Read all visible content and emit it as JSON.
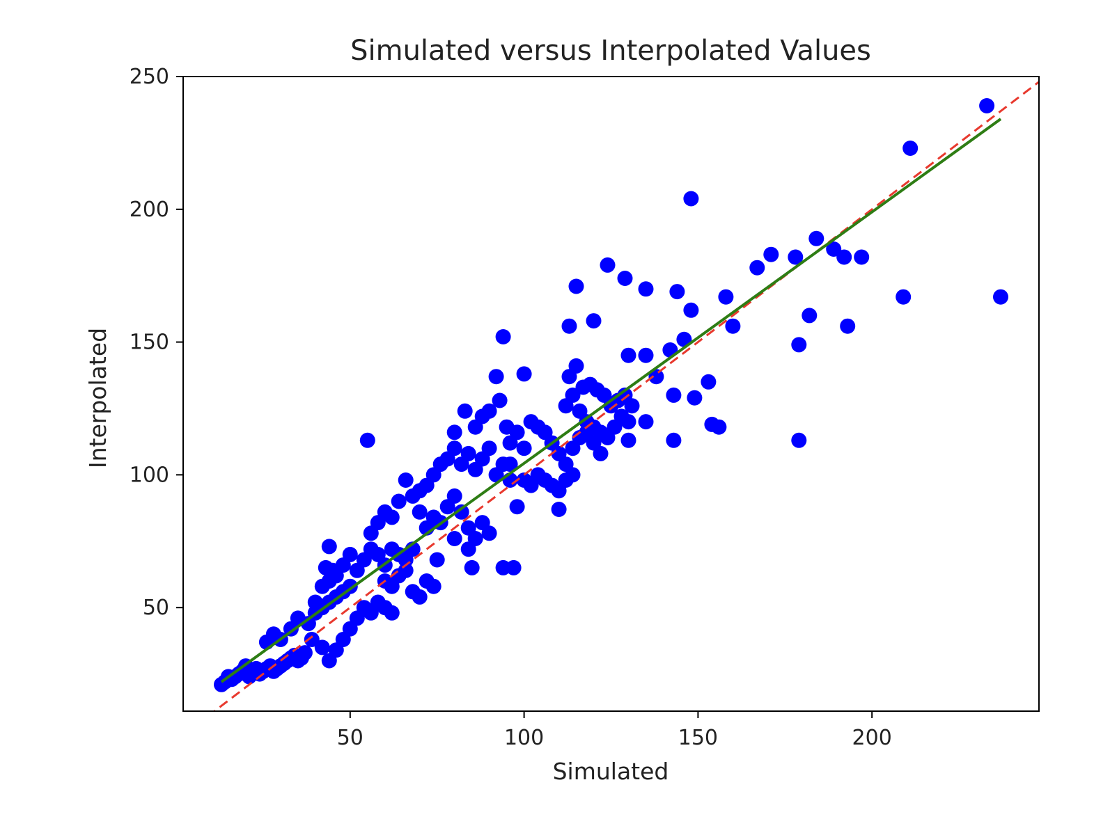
{
  "chart_data": {
    "type": "scatter",
    "title": "Simulated versus Interpolated Values",
    "xlabel": "Simulated",
    "ylabel": "Interpolated",
    "xlim": [
      2,
      248
    ],
    "ylim": [
      11,
      250
    ],
    "xticks": [
      50,
      100,
      150,
      200
    ],
    "yticks": [
      50,
      100,
      150,
      200,
      250
    ],
    "grid": false,
    "legend": "none",
    "colors": {
      "points": "#0000ff",
      "identity_line": "#e8392e",
      "fit_line": "#2e7d14",
      "axes": "#000000"
    },
    "identity_line": {
      "x": [
        2,
        248
      ],
      "y": [
        2,
        248
      ],
      "style": "dashed"
    },
    "fit_line": {
      "x": [
        13,
        237
      ],
      "y": [
        22,
        234
      ],
      "style": "solid"
    },
    "points": [
      [
        13,
        21
      ],
      [
        14,
        22
      ],
      [
        15,
        24
      ],
      [
        16,
        23
      ],
      [
        17,
        24
      ],
      [
        18,
        25
      ],
      [
        19,
        26
      ],
      [
        20,
        28
      ],
      [
        21,
        24
      ],
      [
        22,
        26
      ],
      [
        23,
        27
      ],
      [
        24,
        25
      ],
      [
        25,
        26
      ],
      [
        26,
        27
      ],
      [
        27,
        28
      ],
      [
        28,
        26
      ],
      [
        29,
        27
      ],
      [
        30,
        28
      ],
      [
        31,
        29
      ],
      [
        32,
        30
      ],
      [
        33,
        31
      ],
      [
        34,
        32
      ],
      [
        35,
        30
      ],
      [
        36,
        31
      ],
      [
        37,
        33
      ],
      [
        26,
        37
      ],
      [
        28,
        40
      ],
      [
        30,
        38
      ],
      [
        33,
        42
      ],
      [
        35,
        46
      ],
      [
        38,
        44
      ],
      [
        40,
        48
      ],
      [
        42,
        50
      ],
      [
        44,
        52
      ],
      [
        46,
        54
      ],
      [
        48,
        56
      ],
      [
        50,
        58
      ],
      [
        40,
        52
      ],
      [
        42,
        58
      ],
      [
        44,
        60
      ],
      [
        45,
        64
      ],
      [
        43,
        65
      ],
      [
        46,
        62
      ],
      [
        48,
        66
      ],
      [
        50,
        70
      ],
      [
        44,
        73
      ],
      [
        39,
        38
      ],
      [
        42,
        35
      ],
      [
        44,
        30
      ],
      [
        46,
        34
      ],
      [
        48,
        38
      ],
      [
        50,
        42
      ],
      [
        52,
        46
      ],
      [
        54,
        50
      ],
      [
        56,
        48
      ],
      [
        58,
        52
      ],
      [
        60,
        50
      ],
      [
        62,
        48
      ],
      [
        56,
        78
      ],
      [
        58,
        82
      ],
      [
        60,
        86
      ],
      [
        62,
        84
      ],
      [
        64,
        90
      ],
      [
        66,
        98
      ],
      [
        68,
        92
      ],
      [
        70,
        94
      ],
      [
        72,
        96
      ],
      [
        60,
        60
      ],
      [
        62,
        58
      ],
      [
        64,
        62
      ],
      [
        66,
        64
      ],
      [
        68,
        56
      ],
      [
        70,
        54
      ],
      [
        72,
        60
      ],
      [
        74,
        58
      ],
      [
        52,
        64
      ],
      [
        54,
        68
      ],
      [
        56,
        72
      ],
      [
        58,
        70
      ],
      [
        60,
        66
      ],
      [
        62,
        72
      ],
      [
        64,
        70
      ],
      [
        66,
        68
      ],
      [
        68,
        72
      ],
      [
        55,
        113
      ],
      [
        70,
        86
      ],
      [
        72,
        80
      ],
      [
        74,
        84
      ],
      [
        76,
        82
      ],
      [
        78,
        88
      ],
      [
        80,
        92
      ],
      [
        82,
        86
      ],
      [
        84,
        80
      ],
      [
        86,
        76
      ],
      [
        88,
        82
      ],
      [
        90,
        78
      ],
      [
        75,
        68
      ],
      [
        80,
        76
      ],
      [
        84,
        72
      ],
      [
        85,
        65
      ],
      [
        74,
        100
      ],
      [
        76,
        104
      ],
      [
        78,
        106
      ],
      [
        80,
        110
      ],
      [
        82,
        104
      ],
      [
        84,
        108
      ],
      [
        86,
        102
      ],
      [
        88,
        106
      ],
      [
        90,
        110
      ],
      [
        92,
        100
      ],
      [
        94,
        104
      ],
      [
        96,
        98
      ],
      [
        80,
        116
      ],
      [
        83,
        124
      ],
      [
        86,
        118
      ],
      [
        88,
        122
      ],
      [
        90,
        124
      ],
      [
        92,
        137
      ],
      [
        93,
        128
      ],
      [
        94,
        152
      ],
      [
        95,
        118
      ],
      [
        96,
        112
      ],
      [
        98,
        116
      ],
      [
        100,
        110
      ],
      [
        102,
        120
      ],
      [
        104,
        118
      ],
      [
        106,
        116
      ],
      [
        108,
        112
      ],
      [
        110,
        108
      ],
      [
        112,
        104
      ],
      [
        114,
        110
      ],
      [
        116,
        114
      ],
      [
        118,
        116
      ],
      [
        120,
        112
      ],
      [
        122,
        108
      ],
      [
        96,
        104
      ],
      [
        98,
        88
      ],
      [
        100,
        98
      ],
      [
        102,
        96
      ],
      [
        104,
        100
      ],
      [
        106,
        98
      ],
      [
        108,
        96
      ],
      [
        110,
        94
      ],
      [
        112,
        98
      ],
      [
        114,
        100
      ],
      [
        94,
        65
      ],
      [
        97,
        65
      ],
      [
        110,
        87
      ],
      [
        100,
        138
      ],
      [
        112,
        126
      ],
      [
        114,
        130
      ],
      [
        116,
        124
      ],
      [
        118,
        120
      ],
      [
        120,
        118
      ],
      [
        122,
        116
      ],
      [
        124,
        114
      ],
      [
        126,
        118
      ],
      [
        128,
        122
      ],
      [
        130,
        120
      ],
      [
        113,
        137
      ],
      [
        115,
        141
      ],
      [
        117,
        133
      ],
      [
        119,
        134
      ],
      [
        121,
        132
      ],
      [
        123,
        130
      ],
      [
        125,
        126
      ],
      [
        127,
        128
      ],
      [
        129,
        130
      ],
      [
        131,
        126
      ],
      [
        113,
        156
      ],
      [
        115,
        171
      ],
      [
        120,
        158
      ],
      [
        124,
        179
      ],
      [
        129,
        174
      ],
      [
        130,
        145
      ],
      [
        130,
        113
      ],
      [
        135,
        170
      ],
      [
        135,
        145
      ],
      [
        138,
        137
      ],
      [
        135,
        120
      ],
      [
        142,
        147
      ],
      [
        143,
        130
      ],
      [
        143,
        113
      ],
      [
        144,
        169
      ],
      [
        146,
        151
      ],
      [
        148,
        162
      ],
      [
        149,
        129
      ],
      [
        148,
        204
      ],
      [
        153,
        135
      ],
      [
        154,
        119
      ],
      [
        156,
        118
      ],
      [
        158,
        167
      ],
      [
        160,
        156
      ],
      [
        167,
        178
      ],
      [
        171,
        183
      ],
      [
        178,
        182
      ],
      [
        179,
        113
      ],
      [
        179,
        149
      ],
      [
        182,
        160
      ],
      [
        184,
        189
      ],
      [
        189,
        185
      ],
      [
        192,
        182
      ],
      [
        193,
        156
      ],
      [
        197,
        182
      ],
      [
        209,
        167
      ],
      [
        211,
        223
      ],
      [
        233,
        239
      ],
      [
        237,
        167
      ]
    ]
  }
}
